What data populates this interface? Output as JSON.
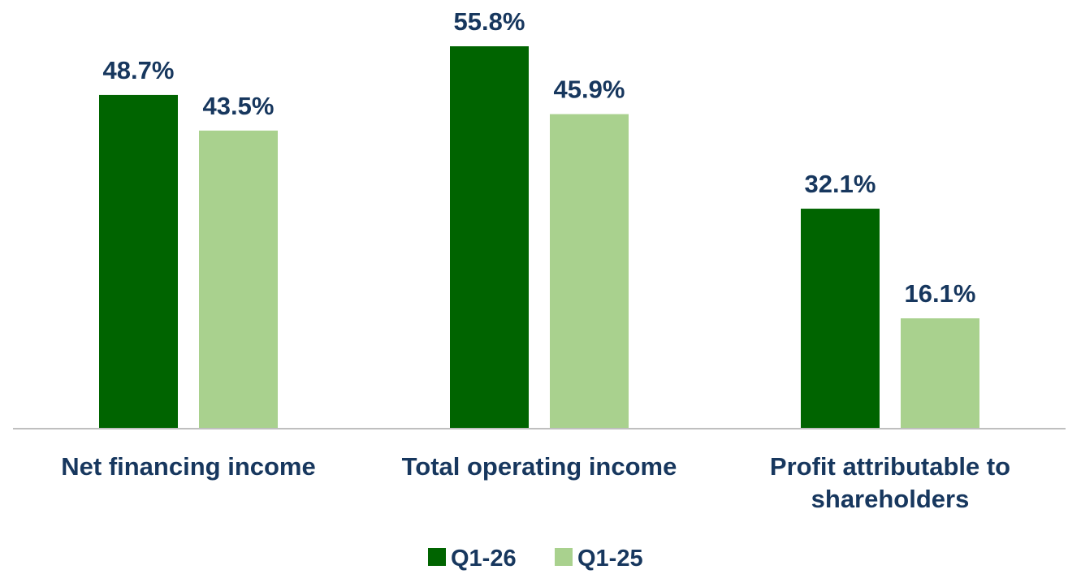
{
  "chart_data": {
    "type": "bar",
    "categories": [
      "Net financing income",
      "Total operating income",
      "Profit attributable to shareholders"
    ],
    "series": [
      {
        "name": "Q1-26",
        "color": "#006400",
        "values": [
          48.7,
          55.8,
          32.1
        ],
        "value_labels": [
          "48.7%",
          "55.8%",
          "32.1%"
        ]
      },
      {
        "name": "Q1-25",
        "color": "#a9d18e",
        "values": [
          43.5,
          45.9,
          16.1
        ],
        "value_labels": [
          "43.5%",
          "45.9%",
          "16.1%"
        ]
      }
    ],
    "legend": "bottom"
  }
}
